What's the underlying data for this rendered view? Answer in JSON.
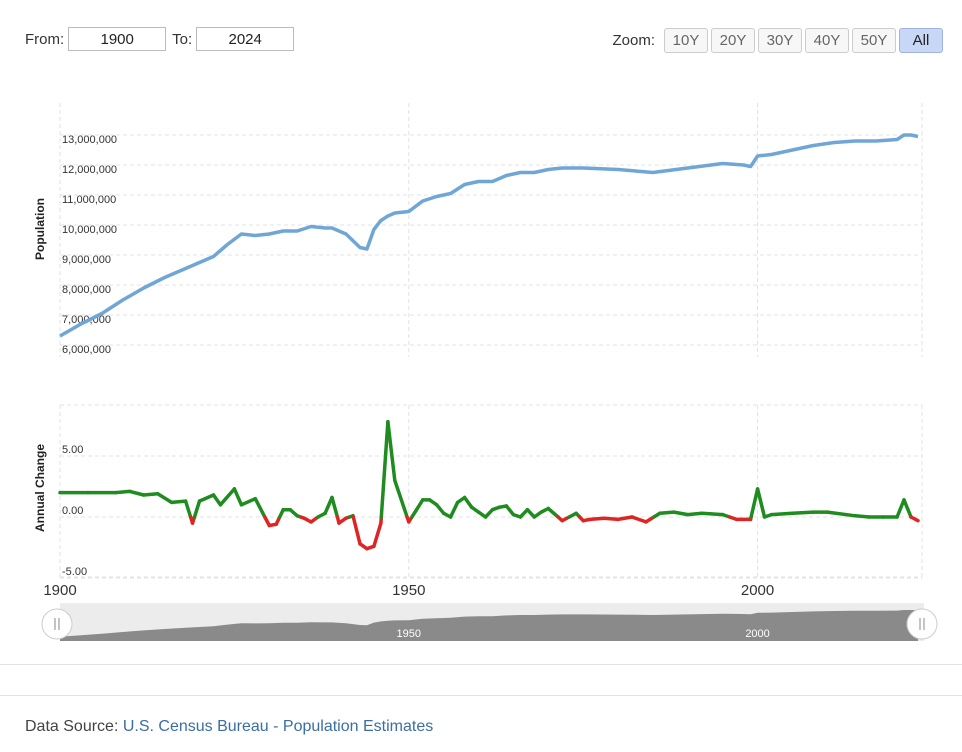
{
  "range": {
    "from_label": "From:",
    "from_value": "1900",
    "to_label": "To:",
    "to_value": "2024"
  },
  "zoom": {
    "label": "Zoom:",
    "buttons": [
      "10Y",
      "20Y",
      "30Y",
      "40Y",
      "50Y",
      "All"
    ],
    "active": "All"
  },
  "source": {
    "label": "Data Source:",
    "link_text": "U.S. Census Bureau - Population Estimates"
  },
  "colors": {
    "population_line": "#6fa6d6",
    "positive_change": "#1e8c1e",
    "negative_change": "#e02424",
    "navigator_fill": "#8a8a8a"
  },
  "chart_data": [
    {
      "type": "line",
      "ylabel": "Population",
      "ylim": [
        6000000,
        13000000
      ],
      "yticks": [
        "6,000,000",
        "7,000,000",
        "8,000,000",
        "9,000,000",
        "10,000,000",
        "11,000,000",
        "12,000,000",
        "13,000,000"
      ],
      "grid": true,
      "x": [
        1900,
        1903,
        1906,
        1909,
        1912,
        1915,
        1918,
        1920,
        1922,
        1924,
        1926,
        1928,
        1930,
        1932,
        1934,
        1936,
        1938,
        1939,
        1941,
        1943,
        1944,
        1945,
        1946,
        1947,
        1948,
        1950,
        1952,
        1954,
        1956,
        1958,
        1960,
        1962,
        1964,
        1966,
        1968,
        1970,
        1972,
        1975,
        1980,
        1985,
        1990,
        1995,
        1998,
        1999,
        2000,
        2002,
        2005,
        2008,
        2011,
        2014,
        2017,
        2020,
        2021,
        2022,
        2023
      ],
      "y": [
        6300000,
        6700000,
        7050000,
        7500000,
        7900000,
        8250000,
        8550000,
        8750000,
        8950000,
        9350000,
        9700000,
        9650000,
        9700000,
        9800000,
        9800000,
        9950000,
        9900000,
        9900000,
        9700000,
        9250000,
        9200000,
        9850000,
        10150000,
        10300000,
        10400000,
        10450000,
        10800000,
        10950000,
        11050000,
        11350000,
        11450000,
        11450000,
        11650000,
        11750000,
        11750000,
        11850000,
        11900000,
        11900000,
        11850000,
        11750000,
        11900000,
        12050000,
        12000000,
        11950000,
        12300000,
        12350000,
        12500000,
        12650000,
        12750000,
        12800000,
        12800000,
        12850000,
        13000000,
        13000000,
        12950000
      ]
    },
    {
      "type": "line",
      "ylabel": "Annual Change",
      "ylim": [
        -5,
        9
      ],
      "yticks": [
        "-5.00",
        "0.00",
        "5.00"
      ],
      "grid": true,
      "x": [
        1900,
        1904,
        1908,
        1910,
        1912,
        1914,
        1916,
        1918,
        1919,
        1920,
        1922,
        1923,
        1925,
        1926,
        1928,
        1930,
        1931,
        1932,
        1933,
        1934,
        1935,
        1936,
        1937,
        1938,
        1939,
        1940,
        1941,
        1942,
        1943,
        1944,
        1945,
        1946,
        1947,
        1948,
        1950,
        1951,
        1952,
        1953,
        1954,
        1955,
        1956,
        1957,
        1958,
        1959,
        1960,
        1961,
        1962,
        1963,
        1964,
        1965,
        1966,
        1967,
        1968,
        1969,
        1970,
        1972,
        1974,
        1975,
        1976,
        1978,
        1980,
        1982,
        1984,
        1986,
        1988,
        1990,
        1992,
        1995,
        1997,
        1999,
        2000,
        2001,
        2002,
        2005,
        2008,
        2010,
        2014,
        2016,
        2018,
        2020,
        2021,
        2022,
        2023
      ],
      "xticks": [
        1900,
        1950,
        2000
      ],
      "y": [
        2.0,
        2.0,
        2.0,
        2.1,
        1.8,
        1.9,
        1.2,
        1.3,
        -0.5,
        1.3,
        1.8,
        1.0,
        2.3,
        1.0,
        1.5,
        -0.7,
        -0.6,
        0.6,
        0.6,
        0.1,
        -0.1,
        -0.4,
        0.0,
        0.3,
        1.6,
        -0.5,
        -0.1,
        0.1,
        -2.2,
        -2.6,
        -2.4,
        -0.5,
        7.8,
        3.0,
        -0.4,
        0.5,
        1.4,
        1.4,
        1.0,
        0.3,
        0.0,
        1.2,
        1.6,
        0.8,
        0.4,
        0.0,
        0.6,
        0.8,
        0.9,
        0.2,
        0.0,
        0.6,
        0.0,
        0.4,
        0.7,
        -0.3,
        0.3,
        -0.3,
        -0.2,
        -0.1,
        -0.2,
        0.0,
        -0.4,
        0.3,
        0.4,
        0.2,
        0.3,
        0.2,
        -0.2,
        -0.2,
        2.3,
        0.0,
        0.2,
        0.3,
        0.4,
        0.4,
        0.1,
        0.0,
        0.0,
        0.0,
        1.4,
        0.0,
        -0.3
      ]
    },
    {
      "type": "area",
      "role": "navigator",
      "xticks": [
        1950,
        2000
      ]
    }
  ]
}
